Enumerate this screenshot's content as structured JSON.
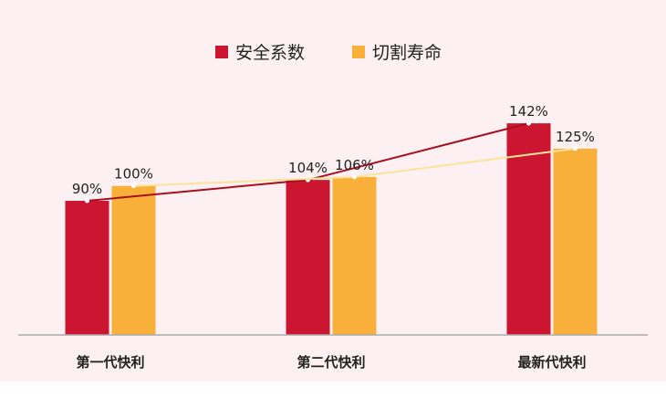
{
  "chart_data": {
    "type": "bar",
    "categories": [
      "第一代快利",
      "第二代快利",
      "最新代快利"
    ],
    "series": [
      {
        "name": "安全系数",
        "values": [
          90,
          104,
          142
        ],
        "labels": [
          "90%",
          "104%",
          "142%"
        ],
        "color": "#cc1530",
        "trend_color": "#a8101f"
      },
      {
        "name": "切割寿命",
        "values": [
          100,
          106,
          125
        ],
        "labels": [
          "100%",
          "106%",
          "125%"
        ],
        "color": "#f8b03a",
        "trend_color": "#fbe39a"
      }
    ],
    "ylim": [
      0,
      180
    ],
    "legend": "top",
    "grid": false,
    "trend_lines": true
  },
  "colors": {
    "background": "#fcf0f3",
    "axis": "#aaaaaa"
  }
}
